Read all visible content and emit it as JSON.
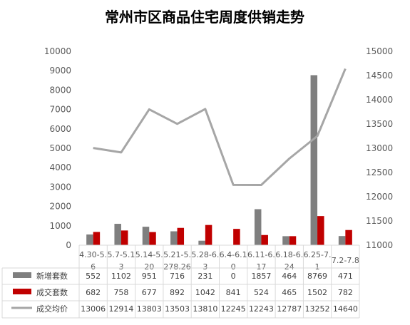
{
  "chart_data": {
    "type": "bar",
    "title": "常州市区商品住宅周度供销走势",
    "categories": [
      [
        "4.30-5.",
        "6"
      ],
      [
        "5.7-5.1",
        "3"
      ],
      [
        "5.14-5.",
        "20"
      ],
      [
        "5.21-5.",
        "278.26"
      ],
      [
        "5.28-6.",
        "3"
      ],
      [
        "6.4-6.1",
        "0"
      ],
      [
        "6.11-6.",
        "17"
      ],
      [
        "6.18-6.",
        "24"
      ],
      [
        "6.25-7.",
        "1"
      ],
      [
        "7.2-7.8"
      ]
    ],
    "series": [
      {
        "name": "新增套数",
        "type": "bar",
        "axis": "left",
        "color": "#7f7f7f",
        "values": [
          552,
          1102,
          951,
          716,
          231,
          0,
          1857,
          464,
          8769,
          471
        ]
      },
      {
        "name": "成交套数",
        "type": "bar",
        "axis": "left",
        "color": "#c00000",
        "values": [
          682,
          758,
          677,
          892,
          1042,
          841,
          524,
          465,
          1502,
          782
        ]
      },
      {
        "name": "成交均价",
        "type": "line",
        "axis": "right",
        "color": "#a6a6a6",
        "values": [
          13006,
          12914,
          13803,
          13503,
          13810,
          12245,
          12243,
          12787,
          13252,
          14640
        ]
      }
    ],
    "y_left": {
      "min": 0,
      "max": 10000,
      "ticks": [
        0,
        1000,
        2000,
        3000,
        4000,
        5000,
        6000,
        7000,
        8000,
        9000,
        10000
      ]
    },
    "y_right": {
      "min": 11000,
      "max": 15000,
      "ticks": [
        11000,
        11500,
        12000,
        12500,
        13000,
        13500,
        14000,
        14500,
        15000
      ]
    },
    "grid": false,
    "legend": "data-table"
  }
}
